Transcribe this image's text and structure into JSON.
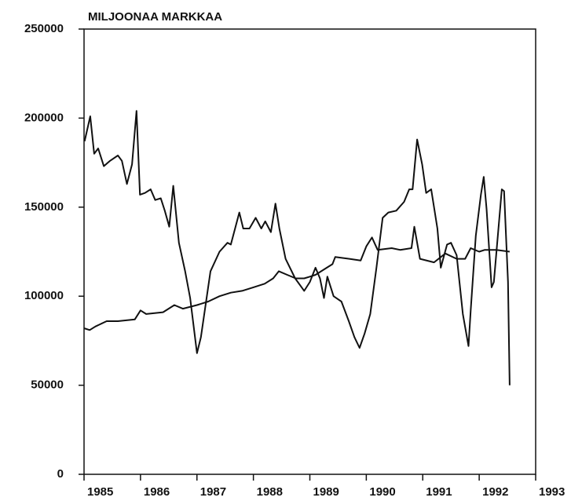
{
  "chart_data": {
    "type": "line",
    "title": "MILJOONAA MARKKAA",
    "xlim": [
      1985,
      1993
    ],
    "xticks": [
      1985,
      1986,
      1987,
      1988,
      1989,
      1990,
      1991,
      1992,
      1993
    ],
    "ylim": [
      0,
      250000
    ],
    "yticks": [
      0,
      50000,
      100000,
      150000,
      200000,
      250000
    ],
    "grid": false,
    "series": [
      {
        "color": "#111111",
        "x": [
          1985.01,
          1985.11,
          1985.18,
          1985.25,
          1985.35,
          1985.46,
          1985.6,
          1985.67,
          1985.76,
          1985.85,
          1985.93,
          1985.99,
          1986.08,
          1986.18,
          1986.26,
          1986.36,
          1986.43,
          1986.51,
          1986.58,
          1986.68,
          1986.79,
          1986.88,
          1987.0,
          1987.07,
          1987.24,
          1987.4,
          1987.54,
          1987.6,
          1987.75,
          1987.82,
          1987.93,
          1988.04,
          1988.14,
          1988.21,
          1988.31,
          1988.39,
          1988.46,
          1988.57,
          1988.74,
          1988.9,
          1989.0,
          1989.1,
          1989.18,
          1989.25,
          1989.31,
          1989.42,
          1989.56,
          1989.69,
          1989.79,
          1989.88,
          1989.97,
          1990.07,
          1990.18,
          1990.29,
          1990.39,
          1990.53,
          1990.67,
          1990.76,
          1990.82,
          1990.9,
          1990.99,
          1991.06,
          1991.15,
          1991.26,
          1991.32,
          1991.43,
          1991.5,
          1991.6,
          1991.71,
          1991.81,
          1991.85,
          1991.94,
          1992.03,
          1992.08,
          1992.13,
          1992.22,
          1992.26,
          1992.4,
          1992.44,
          1992.51,
          1992.54
        ],
        "values": [
          187000,
          201000,
          180000,
          183000,
          173000,
          176000,
          179000,
          176000,
          163000,
          174000,
          204000,
          157000,
          158000,
          160000,
          154000,
          155000,
          148000,
          139000,
          162000,
          130000,
          114000,
          99000,
          68000,
          77000,
          114000,
          125000,
          130000,
          129000,
          147000,
          138000,
          138000,
          144000,
          138000,
          142000,
          136000,
          152000,
          138000,
          121000,
          110000,
          103000,
          108000,
          116000,
          110000,
          99000,
          111000,
          100000,
          97000,
          86000,
          77000,
          71000,
          79000,
          90000,
          116000,
          144000,
          147000,
          148000,
          153000,
          160000,
          160000,
          188000,
          174000,
          158000,
          160000,
          138000,
          116000,
          129000,
          130000,
          123000,
          90000,
          72000,
          92000,
          134000,
          157000,
          167000,
          149000,
          105000,
          108000,
          160000,
          159000,
          108000,
          50000
        ]
      },
      {
        "color": "#111111",
        "x": [
          1985.0,
          1985.1,
          1985.2,
          1985.4,
          1985.6,
          1985.9,
          1986.0,
          1986.1,
          1986.4,
          1986.6,
          1986.75,
          1987.0,
          1987.2,
          1987.4,
          1987.6,
          1987.8,
          1988.0,
          1988.2,
          1988.35,
          1988.45,
          1988.6,
          1988.75,
          1988.9,
          1989.0,
          1989.1,
          1989.3,
          1989.4,
          1989.45,
          1989.7,
          1989.9,
          1990.0,
          1990.1,
          1990.2,
          1990.45,
          1990.6,
          1990.8,
          1990.85,
          1990.95,
          1991.2,
          1991.4,
          1991.6,
          1991.75,
          1991.85,
          1992.0,
          1992.1,
          1992.3,
          1992.54
        ],
        "values": [
          82000,
          81000,
          83000,
          86000,
          86000,
          87000,
          92000,
          90000,
          91000,
          95000,
          93000,
          95000,
          97000,
          100000,
          102000,
          103000,
          105000,
          107000,
          110000,
          114000,
          112000,
          110000,
          110000,
          111000,
          112000,
          116000,
          118000,
          122000,
          121000,
          120000,
          128000,
          133000,
          126000,
          127000,
          126000,
          127000,
          139000,
          121000,
          119000,
          124000,
          121000,
          121000,
          127000,
          125000,
          126000,
          126000,
          125000
        ]
      }
    ]
  }
}
